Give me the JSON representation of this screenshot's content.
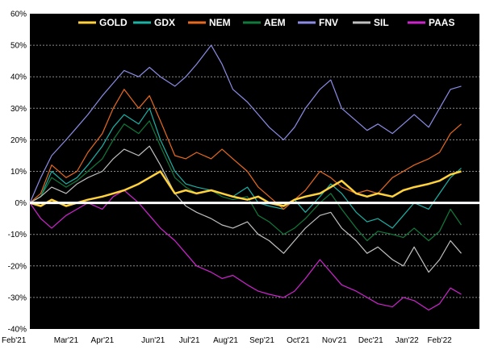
{
  "chart_data": {
    "type": "line",
    "title": "",
    "xlabel": "",
    "ylabel": "",
    "ylim": [
      -40,
      60
    ],
    "y_ticks": [
      "60%",
      "50%",
      "40%",
      "30%",
      "20%",
      "10%",
      "0%",
      "-10%",
      "-20%",
      "-30%",
      "-40%"
    ],
    "y_tick_values": [
      60,
      50,
      40,
      30,
      20,
      10,
      0,
      -10,
      -20,
      -30,
      -40
    ],
    "x_ticks": [
      "Feb'21",
      "Mar'21",
      "Apr'21",
      "Jun'21",
      "Jul'21",
      "Aug'21",
      "Sep'21",
      "Oct'21",
      "Nov'21",
      "Dec'21",
      "Jan'22",
      "Feb'22"
    ],
    "x_tick_positions": [
      0,
      1,
      2,
      3.4,
      4.4,
      5.4,
      6.4,
      7.4,
      8.4,
      9.4,
      10.4,
      11.3
    ],
    "x_range": [
      0,
      12.4
    ],
    "grid": true,
    "legend_position": "top-center",
    "background": "#000000",
    "zero_line_color": "#ffffff",
    "series": [
      {
        "name": "GOLD",
        "color": "#ffd23c",
        "x": [
          0,
          0.3,
          0.6,
          1,
          1.3,
          1.6,
          2,
          2.3,
          2.6,
          3,
          3.3,
          3.6,
          4,
          4.3,
          4.6,
          5,
          5.3,
          5.6,
          6,
          6.3,
          6.6,
          7,
          7.3,
          7.6,
          8,
          8.3,
          8.6,
          9,
          9.3,
          9.6,
          10,
          10.3,
          10.6,
          11,
          11.3,
          11.6,
          11.9
        ],
        "values": [
          0,
          -1,
          1,
          -1,
          0,
          1,
          2,
          3,
          4,
          6,
          8,
          10,
          3,
          4,
          3,
          4,
          3,
          2,
          1,
          2,
          0,
          -1,
          1,
          2,
          3,
          5,
          7,
          3,
          2,
          3,
          2,
          4,
          5,
          6,
          7,
          9,
          10
        ]
      },
      {
        "name": "GDX",
        "color": "#1ab3a6",
        "x": [
          0,
          0.3,
          0.6,
          1,
          1.3,
          1.6,
          2,
          2.3,
          2.6,
          3,
          3.3,
          3.6,
          4,
          4.3,
          4.6,
          5,
          5.3,
          5.6,
          6,
          6.3,
          6.6,
          7,
          7.3,
          7.6,
          8,
          8.3,
          8.6,
          9,
          9.3,
          9.6,
          10,
          10.3,
          10.6,
          11,
          11.3,
          11.6,
          11.9
        ],
        "values": [
          0,
          2,
          10,
          6,
          8,
          12,
          18,
          24,
          28,
          25,
          30,
          20,
          10,
          6,
          5,
          4,
          3,
          2,
          5,
          0,
          -1,
          -2,
          1,
          -3,
          2,
          6,
          3,
          -3,
          -6,
          -5,
          -8,
          -4,
          0,
          -2,
          3,
          8,
          11
        ]
      },
      {
        "name": "NEM",
        "color": "#e86a1e",
        "x": [
          0,
          0.3,
          0.6,
          1,
          1.3,
          1.6,
          2,
          2.3,
          2.6,
          3,
          3.3,
          3.6,
          4,
          4.3,
          4.6,
          5,
          5.3,
          5.6,
          6,
          6.3,
          6.6,
          7,
          7.3,
          7.6,
          8,
          8.3,
          8.6,
          9,
          9.3,
          9.6,
          10,
          10.3,
          10.6,
          11,
          11.3,
          11.6,
          11.9
        ],
        "values": [
          0,
          3,
          12,
          8,
          10,
          16,
          22,
          30,
          36,
          30,
          34,
          26,
          15,
          14,
          16,
          14,
          17,
          14,
          10,
          5,
          2,
          -2,
          1,
          4,
          10,
          8,
          5,
          3,
          4,
          3,
          8,
          10,
          12,
          14,
          16,
          22,
          25
        ]
      },
      {
        "name": "AEM",
        "color": "#0f7a3c",
        "x": [
          0,
          0.3,
          0.6,
          1,
          1.3,
          1.6,
          2,
          2.3,
          2.6,
          3,
          3.3,
          3.6,
          4,
          4.3,
          4.6,
          5,
          5.3,
          5.6,
          6,
          6.3,
          6.6,
          7,
          7.3,
          7.6,
          8,
          8.3,
          8.6,
          9,
          9.3,
          9.6,
          10,
          10.3,
          10.6,
          11,
          11.3,
          11.6,
          11.9
        ],
        "values": [
          0,
          2,
          8,
          5,
          7,
          10,
          14,
          20,
          25,
          22,
          26,
          18,
          8,
          5,
          3,
          4,
          2,
          1,
          2,
          -4,
          -6,
          -10,
          -8,
          -5,
          0,
          3,
          -2,
          -8,
          -12,
          -9,
          -10,
          -11,
          -8,
          -12,
          -9,
          -2,
          -7
        ]
      },
      {
        "name": "FNV",
        "color": "#8c8ce6",
        "x": [
          0,
          0.3,
          0.6,
          1,
          1.3,
          1.6,
          2,
          2.3,
          2.6,
          3,
          3.3,
          3.6,
          4,
          4.3,
          4.6,
          5,
          5.3,
          5.6,
          6,
          6.3,
          6.6,
          7,
          7.3,
          7.6,
          8,
          8.3,
          8.6,
          9,
          9.3,
          9.6,
          10,
          10.3,
          10.6,
          11,
          11.3,
          11.6,
          11.9
        ],
        "values": [
          0,
          8,
          15,
          20,
          24,
          28,
          34,
          38,
          42,
          40,
          43,
          40,
          37,
          40,
          44,
          50,
          44,
          36,
          32,
          28,
          24,
          20,
          24,
          30,
          36,
          39,
          30,
          26,
          23,
          25,
          22,
          25,
          28,
          24,
          30,
          36,
          37
        ]
      },
      {
        "name": "SIL",
        "color": "#c0c0c0",
        "x": [
          0,
          0.3,
          0.6,
          1,
          1.3,
          1.6,
          2,
          2.3,
          2.6,
          3,
          3.3,
          3.6,
          4,
          4.3,
          4.6,
          5,
          5.3,
          5.6,
          6,
          6.3,
          6.6,
          7,
          7.3,
          7.6,
          8,
          8.3,
          8.6,
          9,
          9.3,
          9.6,
          10,
          10.3,
          10.6,
          11,
          11.3,
          11.6,
          11.9
        ],
        "values": [
          0,
          2,
          5,
          3,
          6,
          8,
          10,
          14,
          17,
          15,
          18,
          12,
          3,
          -1,
          -3,
          -5,
          -7,
          -8,
          -6,
          -10,
          -12,
          -16,
          -12,
          -8,
          -4,
          -3,
          -8,
          -12,
          -16,
          -14,
          -18,
          -20,
          -14,
          -22,
          -18,
          -12,
          -16
        ]
      },
      {
        "name": "PAAS",
        "color": "#d024d0",
        "x": [
          0,
          0.3,
          0.6,
          1,
          1.3,
          1.6,
          2,
          2.3,
          2.6,
          3,
          3.3,
          3.6,
          4,
          4.3,
          4.6,
          5,
          5.3,
          5.6,
          6,
          6.3,
          6.6,
          7,
          7.3,
          7.6,
          8,
          8.3,
          8.6,
          9,
          9.3,
          9.6,
          10,
          10.3,
          10.6,
          11,
          11.3,
          11.6,
          11.9
        ],
        "values": [
          0,
          -5,
          -8,
          -4,
          -2,
          0,
          -2,
          2,
          4,
          0,
          -4,
          -8,
          -12,
          -16,
          -20,
          -22,
          -24,
          -23,
          -26,
          -28,
          -29,
          -30,
          -28,
          -24,
          -18,
          -22,
          -26,
          -28,
          -30,
          -32,
          -33,
          -30,
          -31,
          -34,
          -32,
          -27,
          -29
        ]
      }
    ]
  }
}
